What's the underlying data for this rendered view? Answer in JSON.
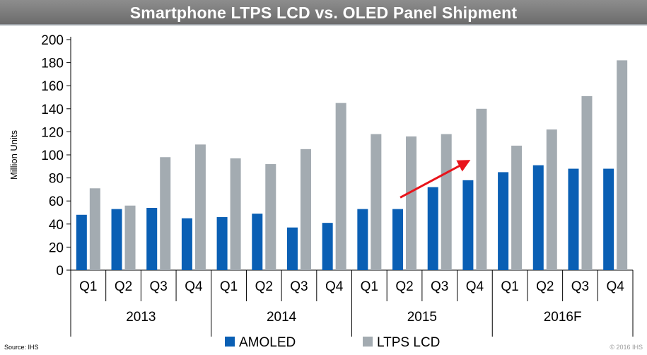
{
  "title": "Smartphone LTPS LCD vs. OLED Panel Shipment",
  "source": "Source: IHS",
  "copyright": "© 2016 IHS",
  "colors": {
    "amoled": "#0a5fb4",
    "ltps": "#a3abb1",
    "arrow": "#e8141b",
    "title_bg": "#7a7a7a"
  },
  "chart_data": {
    "type": "bar",
    "title": "Smartphone LTPS LCD vs. OLED Panel Shipment",
    "ylabel": "Million Units",
    "xlabel": "",
    "ylim": [
      0,
      200
    ],
    "yticks": [
      0,
      20,
      40,
      60,
      80,
      100,
      120,
      140,
      160,
      180,
      200
    ],
    "grid": false,
    "legend_position": "bottom",
    "categories": [
      "Q1",
      "Q2",
      "Q3",
      "Q4",
      "Q1",
      "Q2",
      "Q3",
      "Q4",
      "Q1",
      "Q2",
      "Q3",
      "Q4",
      "Q1",
      "Q2",
      "Q3",
      "Q4"
    ],
    "groups": [
      "2013",
      "2014",
      "2015",
      "2016F"
    ],
    "series": [
      {
        "name": "AMOLED",
        "values": [
          48,
          53,
          54,
          45,
          46,
          49,
          37,
          41,
          53,
          53,
          72,
          78,
          85,
          91,
          88,
          88
        ]
      },
      {
        "name": "LTPS LCD",
        "values": [
          71,
          56,
          98,
          109,
          97,
          92,
          105,
          145,
          118,
          116,
          118,
          140,
          108,
          122,
          151,
          182
        ]
      }
    ],
    "annotations": [
      {
        "type": "arrow",
        "from": {
          "category_index": 9,
          "value": 63
        },
        "to": {
          "category_index": 11,
          "value": 93
        }
      }
    ]
  }
}
